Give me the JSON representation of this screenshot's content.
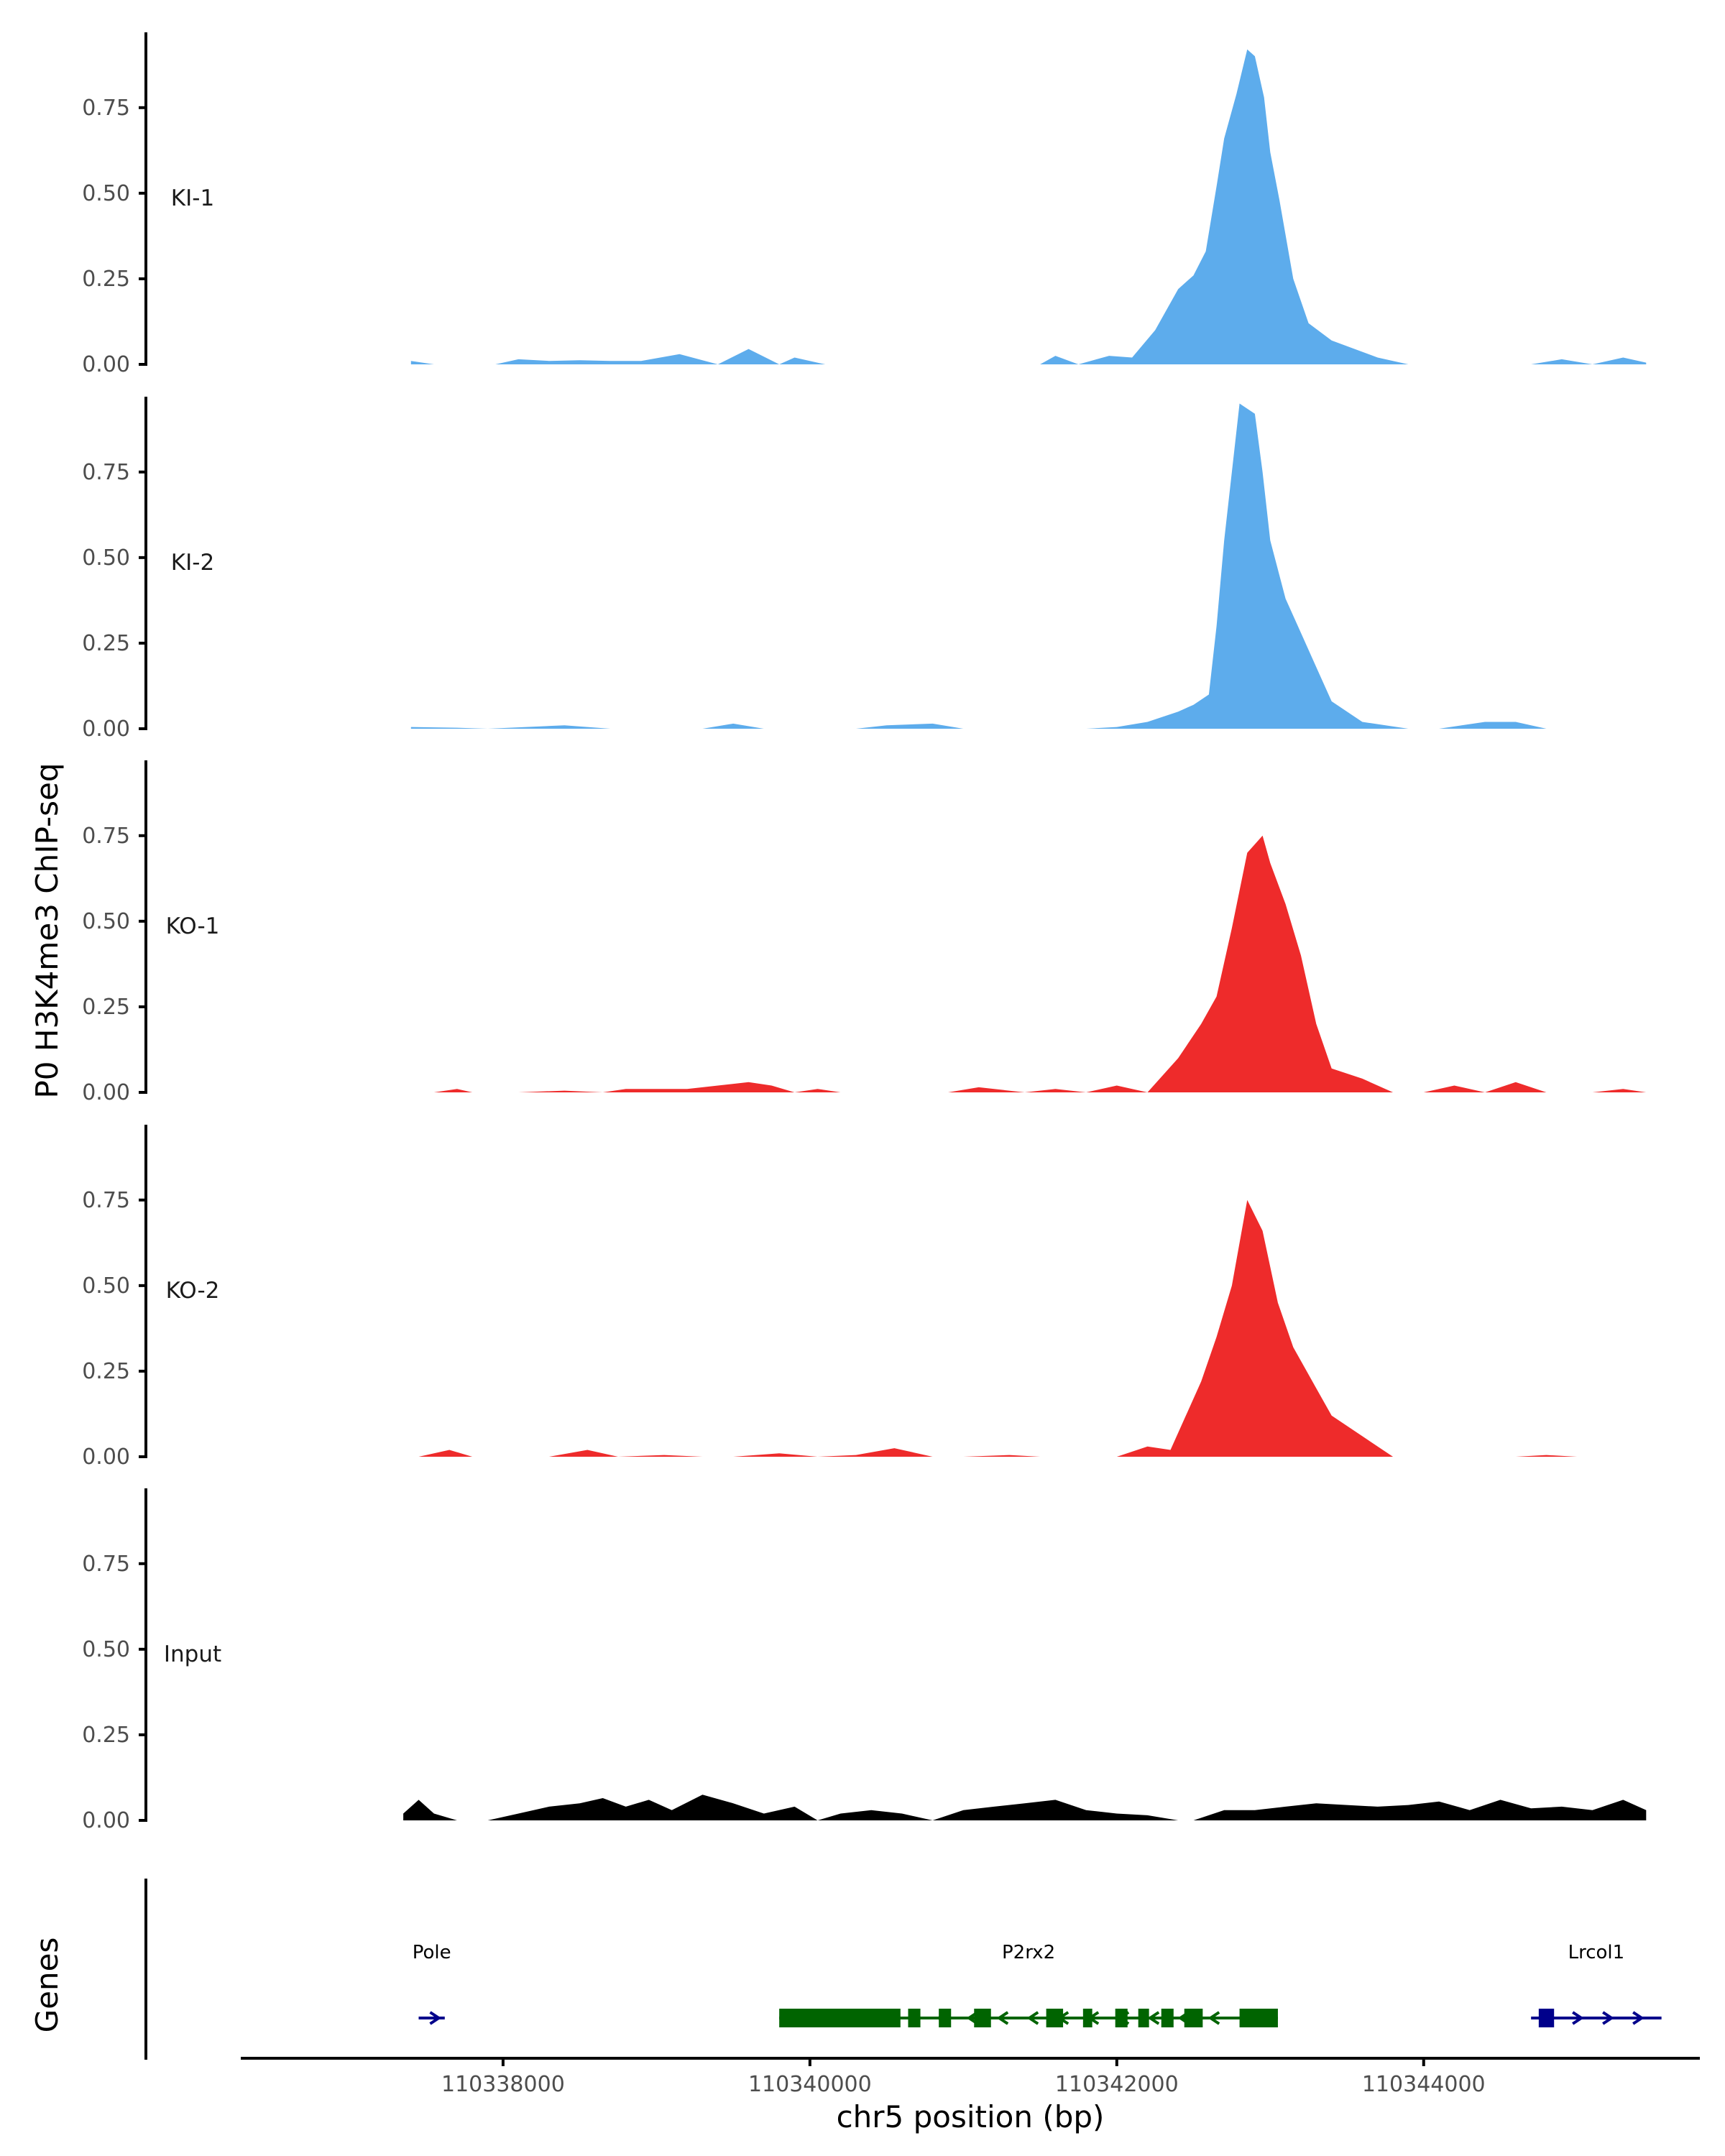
{
  "chart_data": {
    "type": "area",
    "ylabel": "P0 H3K4me3 ChIP-seq",
    "xlabel": "chr5 position (bp)",
    "genes_label": "Genes",
    "xlim": [
      110336300,
      110345800
    ],
    "ylim": [
      0,
      0.97
    ],
    "yticks": [
      0.0,
      0.25,
      0.5,
      0.75
    ],
    "ytick_labels": [
      "0.00",
      "0.25",
      "0.50",
      "0.75"
    ],
    "xticks": [
      110338000,
      110340000,
      110342000,
      110344000
    ],
    "xtick_labels": [
      "110338000",
      "110340000",
      "110342000",
      "110344000"
    ],
    "series": [
      {
        "name": "KI-1",
        "color": "#5DACEC",
        "x": [
          110337400,
          110337550,
          110337950,
          110338100,
          110338300,
          110338500,
          110338700,
          110338900,
          110339150,
          110339400,
          110339600,
          110339800,
          110339900,
          110340100,
          110340450,
          110340650,
          110340900,
          110341150,
          110341500,
          110341600,
          110341750,
          110341950,
          110342100,
          110342250,
          110342400,
          110342500,
          110342580,
          110342650,
          110342700,
          110342780,
          110342850,
          110342900,
          110342960,
          110343000,
          110343060,
          110343150,
          110343250,
          110343400,
          110343550,
          110343700,
          110343900,
          110344700,
          110344900,
          110345100,
          110345300,
          110345450
        ],
        "y": [
          0.01,
          0.0,
          0.0,
          0.015,
          0.01,
          0.012,
          0.01,
          0.01,
          0.03,
          0.0,
          0.045,
          0.0,
          0.02,
          0.0,
          0.0,
          0.0,
          0.0,
          0.0,
          0.0,
          0.025,
          0.0,
          0.025,
          0.02,
          0.1,
          0.22,
          0.26,
          0.33,
          0.52,
          0.66,
          0.79,
          0.92,
          0.9,
          0.78,
          0.62,
          0.48,
          0.25,
          0.12,
          0.07,
          0.045,
          0.02,
          0.0,
          0.0,
          0.015,
          0.0,
          0.02,
          0.005
        ]
      },
      {
        "name": "KI-2",
        "color": "#5DACEC",
        "x": [
          110337400,
          110337700,
          110337900,
          110338400,
          110338700,
          110339000,
          110339300,
          110339500,
          110339700,
          110339800,
          110340000,
          110340300,
          110340500,
          110340800,
          110341000,
          110341800,
          110342000,
          110342200,
          110342400,
          110342500,
          110342600,
          110342650,
          110342700,
          110342750,
          110342800,
          110342900,
          110342950,
          110343000,
          110343100,
          110343200,
          110343300,
          110343400,
          110343600,
          110343900,
          110344100,
          110344400,
          110344600,
          110344800,
          110345100
        ],
        "y": [
          0.005,
          0.003,
          0.0,
          0.01,
          0.0,
          0.0,
          0.0,
          0.015,
          0.0,
          0.0,
          0.0,
          0.0,
          0.01,
          0.015,
          0.0,
          0.0,
          0.005,
          0.02,
          0.05,
          0.07,
          0.1,
          0.3,
          0.55,
          0.75,
          0.95,
          0.92,
          0.75,
          0.55,
          0.38,
          0.28,
          0.18,
          0.08,
          0.02,
          0.0,
          0.0,
          0.02,
          0.02,
          0.0,
          0.0
        ],
        "gaps_note": "",
        "breaks": []
      },
      {
        "name": "KO-1",
        "color": "#EE2B2B",
        "x": [
          110337550,
          110337700,
          110337800,
          110338100,
          110338400,
          110338650,
          110338800,
          110339200,
          110339400,
          110339600,
          110339750,
          110339900,
          110340050,
          110340200,
          110340400,
          110340900,
          110341100,
          110341400,
          110341600,
          110341800,
          110342000,
          110342200,
          110342400,
          110342550,
          110342650,
          110342750,
          110342850,
          110342950,
          110343000,
          110343100,
          110343200,
          110343300,
          110343400,
          110343600,
          110343800,
          110344000,
          110344200,
          110344400,
          110344600,
          110344800,
          110345100,
          110345300,
          110345450
        ],
        "y": [
          0.0,
          0.01,
          0.0,
          0.0,
          0.005,
          0.0,
          0.01,
          0.01,
          0.02,
          0.03,
          0.02,
          0.0,
          0.01,
          0.0,
          0.0,
          0.0,
          0.015,
          0.0,
          0.01,
          0.0,
          0.02,
          0.0,
          0.1,
          0.2,
          0.28,
          0.48,
          0.7,
          0.75,
          0.67,
          0.55,
          0.4,
          0.2,
          0.07,
          0.04,
          0.0,
          0.0,
          0.02,
          0.0,
          0.03,
          0.0,
          0.0,
          0.01,
          0.0
        ],
        "breaks": []
      },
      {
        "name": "KO-2",
        "color": "#EE2B2B",
        "x": [
          110337450,
          110337650,
          110337800,
          110338000,
          110338300,
          110338550,
          110338750,
          110339050,
          110339300,
          110339500,
          110339800,
          110340050,
          110340300,
          110340550,
          110340800,
          110341000,
          110341300,
          110341500,
          110342000,
          110342200,
          110342350,
          110342450,
          110342550,
          110342650,
          110342750,
          110342850,
          110342950,
          110343050,
          110343150,
          110343300,
          110343400,
          110343600,
          110343800,
          110344000,
          110344600,
          110344800,
          110345000,
          110345200
        ],
        "y": [
          0.0,
          0.02,
          0.0,
          0.0,
          0.0,
          0.02,
          0.0,
          0.005,
          0.0,
          0.0,
          0.01,
          0.0,
          0.005,
          0.025,
          0.0,
          0.0,
          0.005,
          0.0,
          0.0,
          0.03,
          0.02,
          0.12,
          0.22,
          0.35,
          0.5,
          0.75,
          0.66,
          0.45,
          0.32,
          0.2,
          0.12,
          0.06,
          0.0,
          0.0,
          0.0,
          0.005,
          0.0,
          0.0
        ],
        "breaks": []
      },
      {
        "name": "Input",
        "color": "#000000",
        "x": [
          110337350,
          110337450,
          110337550,
          110337700,
          110337900,
          110338100,
          110338300,
          110338500,
          110338650,
          110338800,
          110338950,
          110339100,
          110339300,
          110339500,
          110339700,
          110339900,
          110340050,
          110340200,
          110340400,
          110340600,
          110340800,
          110341000,
          110341200,
          110341400,
          110341600,
          110341800,
          110342000,
          110342200,
          110342400,
          110342500,
          110342700,
          110342900,
          110343100,
          110343300,
          110343500,
          110343700,
          110343900,
          110344100,
          110344300,
          110344500,
          110344700,
          110344900,
          110345100,
          110345300,
          110345450
        ],
        "y": [
          0.02,
          0.06,
          0.02,
          0.0,
          0.0,
          0.02,
          0.04,
          0.05,
          0.065,
          0.04,
          0.06,
          0.03,
          0.075,
          0.05,
          0.02,
          0.04,
          0.0,
          0.02,
          0.03,
          0.02,
          0.0,
          0.03,
          0.04,
          0.05,
          0.06,
          0.03,
          0.02,
          0.015,
          0.0,
          0.0,
          0.03,
          0.03,
          0.04,
          0.05,
          0.045,
          0.04,
          0.045,
          0.055,
          0.03,
          0.06,
          0.035,
          0.04,
          0.03,
          0.06,
          0.03
        ]
      }
    ],
    "genes": [
      {
        "name": "Pole",
        "color": "#00008B",
        "strand": "+",
        "start": 110337450,
        "end": 110337620,
        "exons": []
      },
      {
        "name": "P2rx2",
        "color": "#006400",
        "strand": "-",
        "start": 110339800,
        "end": 110343050,
        "exons": [
          [
            110339800,
            110340590
          ],
          [
            110340640,
            110340720
          ],
          [
            110340840,
            110340920
          ],
          [
            110341070,
            110341180
          ],
          [
            110341540,
            110341650
          ],
          [
            110341780,
            110341840
          ],
          [
            110341990,
            110342070
          ],
          [
            110342140,
            110342210
          ],
          [
            110342290,
            110342370
          ],
          [
            110342440,
            110342560
          ],
          [
            110342800,
            110343050
          ]
        ]
      },
      {
        "name": "Lrcol1",
        "color": "#00008B",
        "strand": "+",
        "start": 110344700,
        "end": 110345550,
        "exons": [
          [
            110344750,
            110344850
          ]
        ]
      }
    ]
  }
}
